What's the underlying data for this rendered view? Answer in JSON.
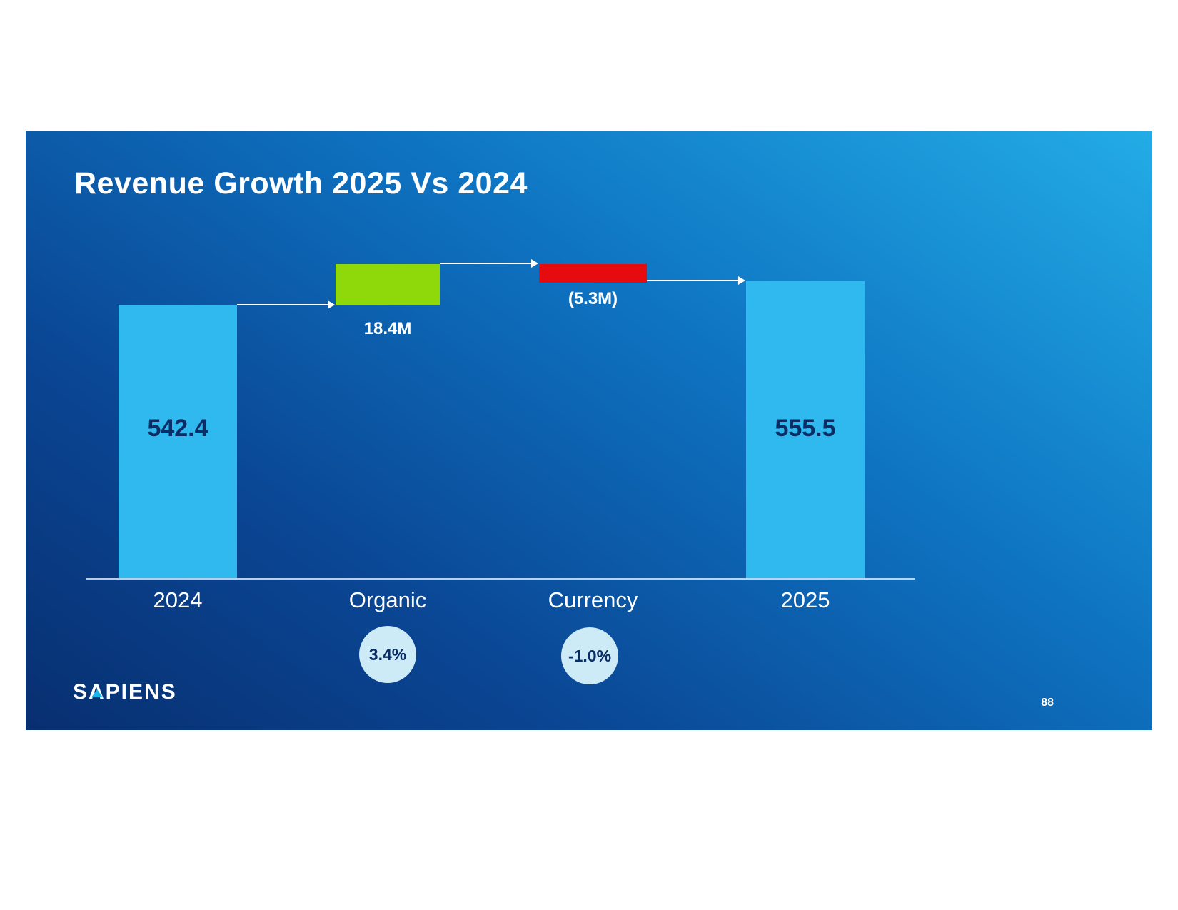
{
  "slide": {
    "title": "Revenue Growth 2025 Vs 2024",
    "logo_text": "SAPIENS",
    "page_number": "88"
  },
  "colors": {
    "total_bar": "#2fb9ee",
    "increase_bar": "#8fd80a",
    "decrease_bar": "#e60b0e",
    "value_text": "#0b2d66",
    "badge_background": "#cdeaf7",
    "slide_gradient_dark": "#082f70",
    "slide_gradient_light": "#23ace6",
    "text_white": "#ffffff"
  },
  "chart_data": {
    "type": "waterfall",
    "title": "Revenue Growth 2025 Vs 2024",
    "categories": [
      "2024",
      "Organic",
      "Currency",
      "2025"
    ],
    "values": [
      542.4,
      18.4,
      -5.3,
      555.5
    ],
    "ylim": [
      0,
      600
    ],
    "grid": false,
    "legend": "none",
    "bars": [
      {
        "category": "2024",
        "type": "total",
        "value": 542.4,
        "label": "542.4"
      },
      {
        "category": "Organic",
        "type": "increase",
        "value": 18.4,
        "label": "18.4M",
        "percent_label": "3.4%"
      },
      {
        "category": "Currency",
        "type": "decrease",
        "value": -5.3,
        "label": "(5.3M)",
        "percent_label": "-1.0%"
      },
      {
        "category": "2025",
        "type": "total",
        "value": 555.5,
        "label": "555.5"
      }
    ]
  }
}
